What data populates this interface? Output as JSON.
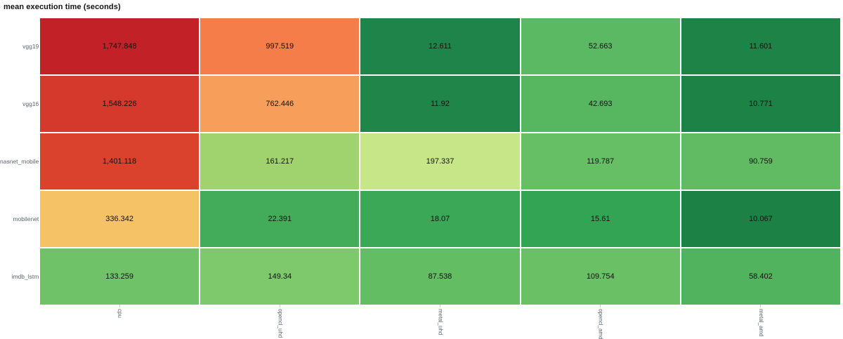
{
  "title": "mean execution time (seconds)",
  "chart_data": {
    "type": "heatmap",
    "title": "mean execution time (seconds)",
    "x_categories": [
      "cpu",
      "opencl_uhd",
      "metal_uhd",
      "opencl_amd",
      "metal_amd"
    ],
    "y_categories": [
      "vgg19",
      "vgg16",
      "nasnet_mobile",
      "mobilenet",
      "imdb_lstm"
    ],
    "values": [
      [
        1747.848,
        997.519,
        12.611,
        52.663,
        11.601
      ],
      [
        1548.226,
        762.446,
        11.92,
        42.693,
        10.771
      ],
      [
        1401.118,
        161.217,
        197.337,
        119.787,
        90.759
      ],
      [
        336.342,
        22.391,
        18.07,
        15.61,
        10.067
      ],
      [
        133.259,
        149.34,
        87.538,
        109.754,
        58.402
      ]
    ],
    "display_values": [
      [
        "1,747.848",
        "997.519",
        "12.611",
        "52.663",
        "11.601"
      ],
      [
        "1,548.226",
        "762.446",
        "11.92",
        "42.693",
        "10.771"
      ],
      [
        "1,401.118",
        "161.217",
        "197.337",
        "119.787",
        "90.759"
      ],
      [
        "336.342",
        "22.391",
        "18.07",
        "15.61",
        "10.067"
      ],
      [
        "133.259",
        "149.34",
        "87.538",
        "109.754",
        "58.402"
      ]
    ],
    "cell_colors": [
      [
        "#c22227",
        "#f57d49",
        "#1e8449",
        "#5bb964",
        "#1d8347"
      ],
      [
        "#d5392b",
        "#f69e5a",
        "#1f8549",
        "#57b660",
        "#1c8246"
      ],
      [
        "#da422d",
        "#a0d36e",
        "#c7e687",
        "#67bf65",
        "#60bb62"
      ],
      [
        "#f6c266",
        "#42ac5a",
        "#3aa857",
        "#33a454",
        "#1b8145"
      ],
      [
        "#6fc268",
        "#7dc96c",
        "#63bd63",
        "#6ac065",
        "#52b35e"
      ]
    ],
    "colorscale": "red-yellow-green (high=red, low=green)",
    "layout": {
      "grid_gap_color": "#ffffff",
      "value_text_color": "#111111",
      "axis_label_color": "#5b6570",
      "tick_color": "#c9ced4",
      "x_tick_angle": 90,
      "legend": "none"
    }
  }
}
